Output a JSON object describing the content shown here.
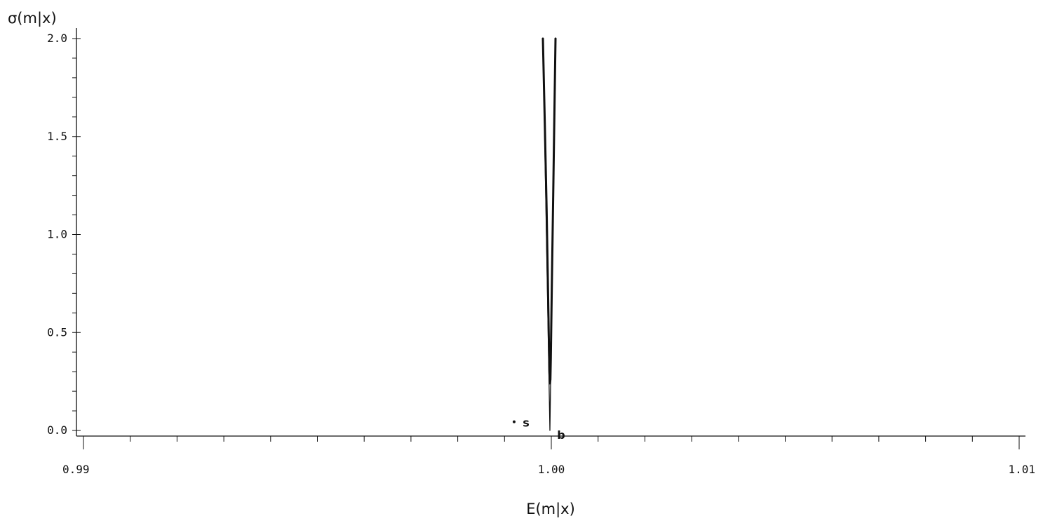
{
  "chart_data": {
    "type": "line",
    "xlabel": "E(m|x)",
    "ylabel": "σ(m|x)",
    "xlim": [
      0.99,
      1.01
    ],
    "ylim": [
      0.0,
      2.0
    ],
    "x_ticks": [
      {
        "value": 0.99,
        "label": "0.99"
      },
      {
        "value": 1.0,
        "label": "1.00"
      },
      {
        "value": 1.01,
        "label": "1.01"
      }
    ],
    "y_ticks": [
      {
        "value": 0.0,
        "label": "0.0"
      },
      {
        "value": 0.5,
        "label": "0.5"
      },
      {
        "value": 1.0,
        "label": "1.0"
      },
      {
        "value": 1.5,
        "label": "1.5"
      },
      {
        "value": 2.0,
        "label": "2.0"
      }
    ],
    "grid": false,
    "series": [
      {
        "style": "thick",
        "points": [
          {
            "x": 0.99982,
            "y": 2.0
          },
          {
            "x": 0.99986,
            "y": 1.57
          },
          {
            "x": 0.9999,
            "y": 1.13
          },
          {
            "x": 0.99993,
            "y": 0.72
          },
          {
            "x": 0.99995,
            "y": 0.42
          },
          {
            "x": 0.99996,
            "y": 0.3
          },
          {
            "x": 0.99997,
            "y": 0.24
          },
          {
            "x": 0.99998,
            "y": 0.26
          },
          {
            "x": 0.99999,
            "y": 0.37
          },
          {
            "x": 1.00001,
            "y": 0.73
          },
          {
            "x": 1.00004,
            "y": 1.2
          },
          {
            "x": 1.00006,
            "y": 1.52
          },
          {
            "x": 1.00009,
            "y": 2.0
          }
        ]
      },
      {
        "style": "thin",
        "points": [
          {
            "x": 0.99982,
            "y": 2.0
          },
          {
            "x": 0.99997,
            "y": 0.0
          },
          {
            "x": 1.00009,
            "y": 1.93
          }
        ]
      }
    ],
    "annotations": [
      {
        "text": "s",
        "x": 0.99946,
        "y": 0.03,
        "marker": true
      },
      {
        "text": "b",
        "x": 0.99997,
        "y": 0.0,
        "marker": false
      }
    ]
  }
}
